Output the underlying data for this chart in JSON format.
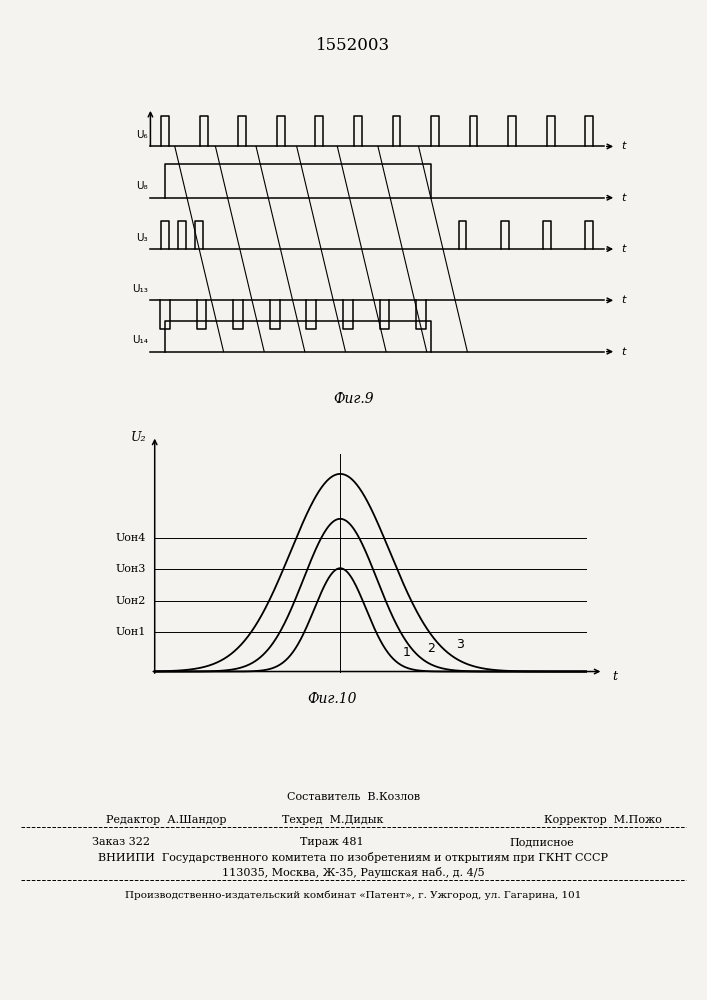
{
  "title": "1552003",
  "title_fontsize": 12,
  "bg_color": "#f5f3ef",
  "fig9_caption": "Фиг.9",
  "fig10_caption": "Фиг.10",
  "fig9_labels": [
    "U₆",
    "U₈",
    "U₃",
    "U₁₃",
    "U₁₄"
  ],
  "fig10_ylabel": "U₂",
  "fig10_xlabel": "t",
  "fig10_hline_labels": [
    "Uон4",
    "Uон3",
    "Uон2",
    "Uон1"
  ],
  "fig10_hline_levels": [
    0.595,
    0.455,
    0.315,
    0.175
  ],
  "footer_sestavitel": "Составитель  В.Козлов",
  "footer_redaktor": "Редактор  А.Шандор",
  "footer_tehred": "Техред  М.Дидык",
  "footer_korrektor": "Корректор  М.Пожо",
  "footer_zakaz": "Заказ 322",
  "footer_tirazh": "Тираж 481",
  "footer_podpisnoe": "Подписное",
  "footer_vniipи": "ВНИИПИ  Государственного комитета по изобретениям и открытиям при ГКНТ СССР",
  "footer_addr": "113035, Москва, Ж-35, Раушская наб., д. 4/5",
  "footer_kombinat": "Производственно-издательский комбинат «Патент», г. Ужгород, ул. Гагарина, 101"
}
